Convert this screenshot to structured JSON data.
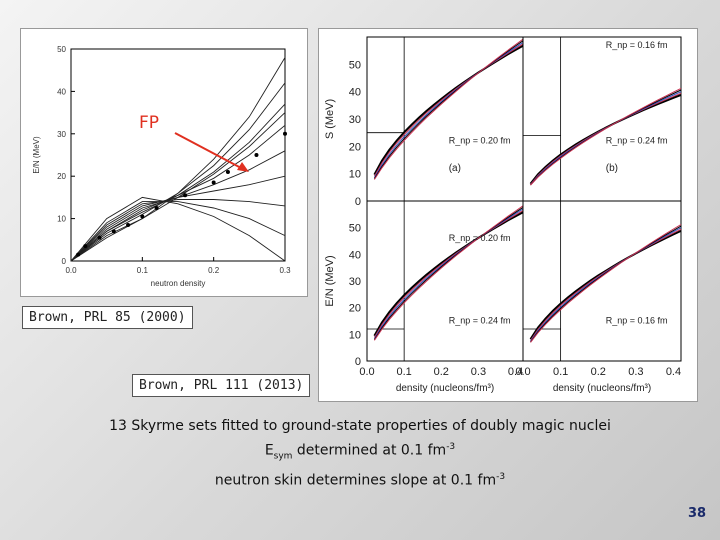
{
  "fig1": {
    "caption": "Brown, PRL 85 (2000)",
    "annotation": "FP",
    "chart_data": {
      "type": "line",
      "xlabel": "neutron density",
      "ylabel": "E/N (MeV)",
      "xlim": [
        0,
        0.3
      ],
      "ylim": [
        0,
        50
      ],
      "xticks": [
        "0.0",
        "0.1",
        "0.2",
        "0.3"
      ],
      "yticks": [
        "0",
        "10",
        "20",
        "30",
        "40",
        "50"
      ],
      "series": [
        {
          "x": [
            0,
            0.05,
            0.1,
            0.15,
            0.2,
            0.25,
            0.3
          ],
          "values": [
            0,
            6,
            10,
            16,
            24,
            34,
            48
          ]
        },
        {
          "x": [
            0,
            0.05,
            0.1,
            0.15,
            0.2,
            0.25,
            0.3
          ],
          "values": [
            0,
            6.5,
            11,
            16,
            22.5,
            31,
            42
          ]
        },
        {
          "x": [
            0,
            0.05,
            0.1,
            0.15,
            0.2,
            0.25,
            0.3
          ],
          "values": [
            0,
            7,
            11.5,
            15.5,
            21,
            28,
            37
          ]
        },
        {
          "x": [
            0,
            0.05,
            0.1,
            0.15,
            0.2,
            0.25,
            0.3
          ],
          "values": [
            0,
            7,
            12,
            15.5,
            19.5,
            25,
            32
          ]
        },
        {
          "x": [
            0,
            0.05,
            0.1,
            0.15,
            0.2,
            0.25,
            0.3
          ],
          "values": [
            0,
            7.5,
            12.5,
            15,
            18,
            21.5,
            26
          ]
        },
        {
          "x": [
            0,
            0.05,
            0.1,
            0.15,
            0.2,
            0.25,
            0.3
          ],
          "values": [
            0,
            8,
            13,
            15,
            16.5,
            18,
            20
          ]
        },
        {
          "x": [
            0,
            0.05,
            0.1,
            0.15,
            0.2,
            0.25,
            0.3
          ],
          "values": [
            0,
            8.5,
            13.5,
            14.5,
            14.5,
            14,
            13
          ]
        },
        {
          "x": [
            0,
            0.05,
            0.1,
            0.15,
            0.2,
            0.25,
            0.3
          ],
          "values": [
            0,
            9,
            14,
            14,
            12.5,
            10,
            6
          ]
        },
        {
          "x": [
            0,
            0.05,
            0.1,
            0.15,
            0.2,
            0.25,
            0.3
          ],
          "values": [
            0,
            10,
            15,
            13.5,
            10.5,
            6,
            0
          ]
        },
        {
          "x": [
            0,
            0.05,
            0.1,
            0.15,
            0.2,
            0.25,
            0.3
          ],
          "values": [
            0,
            5.5,
            10,
            15,
            20.5,
            27,
            35
          ]
        }
      ],
      "points": {
        "x": [
          0.01,
          0.02,
          0.04,
          0.06,
          0.08,
          0.1,
          0.12,
          0.16,
          0.2,
          0.22,
          0.26,
          0.3
        ],
        "y": [
          1.5,
          3.5,
          5.5,
          7,
          8.5,
          10.5,
          12.5,
          15.5,
          18.5,
          21,
          25,
          30
        ]
      }
    }
  },
  "fig2": {
    "caption": "Brown, PRL 111 (2013)",
    "xlabel": "density (nucleons/fm³)",
    "xticks": [
      "0.0",
      "0.1",
      "0.2",
      "0.3",
      "0.4"
    ],
    "yticks": [
      "0",
      "10",
      "20",
      "30",
      "40",
      "50"
    ],
    "ylabel_top": "S (MeV)",
    "ylabel_bottom": "E/N (MeV)",
    "panels": [
      {
        "label": "R_np = 0.20 fm",
        "tag": "(a)"
      },
      {
        "label": "R_np = 0.24 fm",
        "label2": "R_np = 0.16 fm",
        "tag": "(b)"
      },
      {
        "label": "R_np = 0.24 fm",
        "label2": "R_np = 0.20 fm"
      },
      {
        "label": "R_np = 0.16 fm"
      }
    ]
  },
  "summary": {
    "line1": "13 Skyrme sets fitted to ground-state properties of doubly magic nuclei",
    "line2_prefix": "E",
    "line2_sub": "sym",
    "line2_suffix": " determined at 0.1 fm",
    "line2_sup": "-3",
    "line3_prefix": "neutron skin determines slope at 0.1 fm",
    "line3_sup": "-3"
  },
  "page_number": "38",
  "colors": {
    "annotation": "#e03020",
    "page_number": "#1a2a6a",
    "curve_red": "#c83050",
    "curve_blue": "#3050c0"
  }
}
